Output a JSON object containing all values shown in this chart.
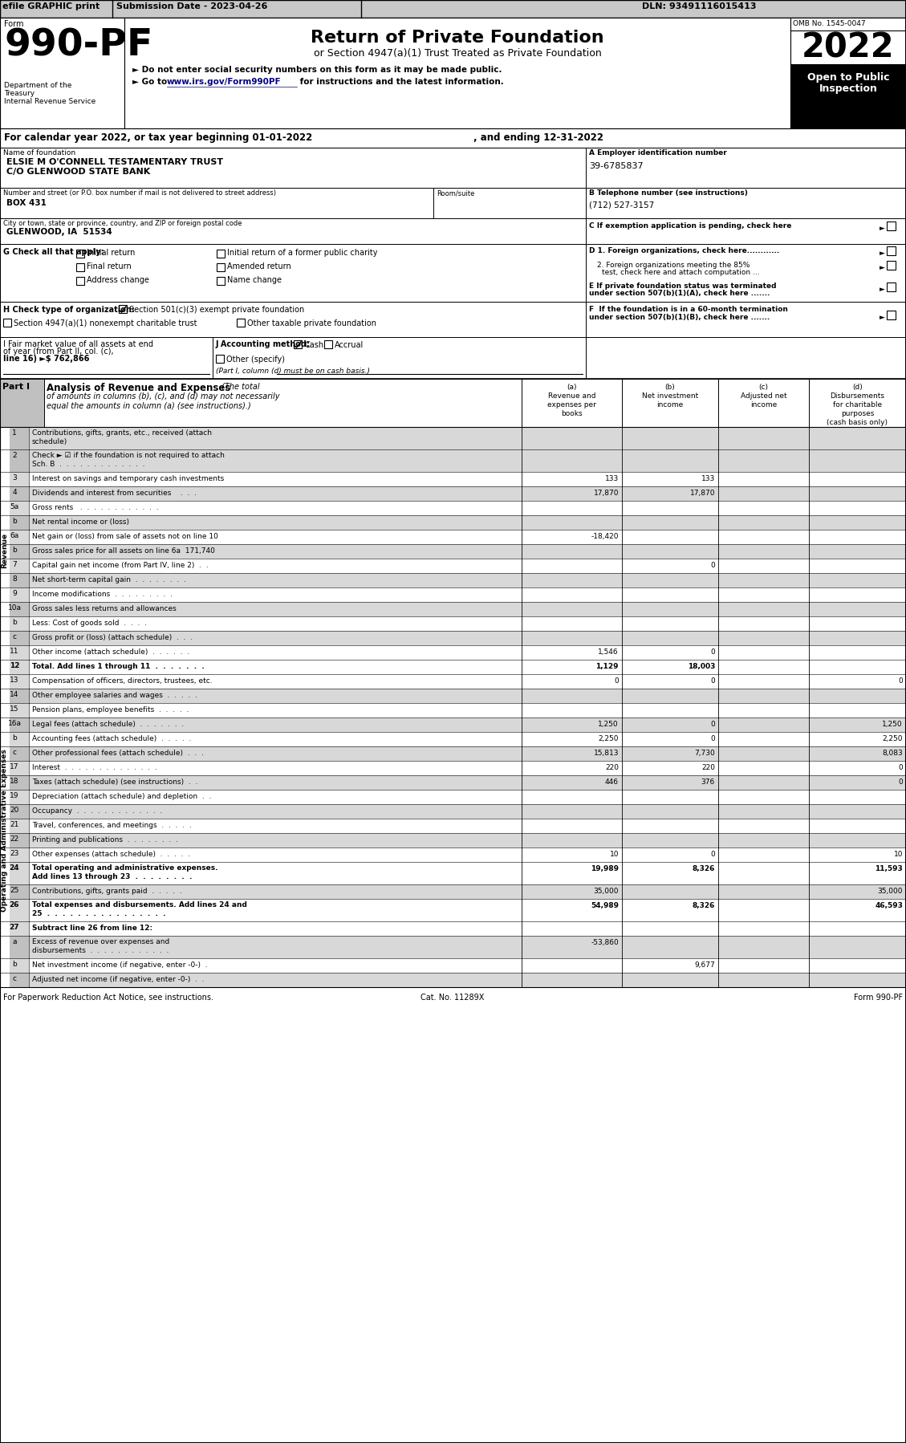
{
  "rows": [
    {
      "num": "1",
      "label": "Contributions, gifts, grants, etc., received (attach\nschedule)",
      "a": "",
      "b": "",
      "c": "",
      "d": "",
      "bold": false,
      "shade": true
    },
    {
      "num": "2",
      "label": "Check ► ☑ if the foundation is not required to attach\nSch. B  .  .  .  .  .  .  .  .  .  .  .  .  .",
      "a": "",
      "b": "",
      "c": "",
      "d": "",
      "bold": false,
      "shade": true
    },
    {
      "num": "3",
      "label": "Interest on savings and temporary cash investments",
      "a": "133",
      "b": "133",
      "c": "",
      "d": "",
      "bold": false,
      "shade": false
    },
    {
      "num": "4",
      "label": "Dividends and interest from securities    .  .  .",
      "a": "17,870",
      "b": "17,870",
      "c": "",
      "d": "",
      "bold": false,
      "shade": true
    },
    {
      "num": "5a",
      "label": "Gross rents   .  .  .  .  .  .  .  .  .  .  .  .",
      "a": "",
      "b": "",
      "c": "",
      "d": "",
      "bold": false,
      "shade": false
    },
    {
      "num": "b",
      "label": "Net rental income or (loss)",
      "a": "",
      "b": "",
      "c": "",
      "d": "",
      "bold": false,
      "shade": true
    },
    {
      "num": "6a",
      "label": "Net gain or (loss) from sale of assets not on line 10",
      "a": "-18,420",
      "b": "",
      "c": "",
      "d": "",
      "bold": false,
      "shade": false
    },
    {
      "num": "b",
      "label": "Gross sales price for all assets on line 6a  171,740",
      "a": "",
      "b": "",
      "c": "",
      "d": "",
      "bold": false,
      "shade": true
    },
    {
      "num": "7",
      "label": "Capital gain net income (from Part IV, line 2)  .  .",
      "a": "",
      "b": "0",
      "c": "",
      "d": "",
      "bold": false,
      "shade": false
    },
    {
      "num": "8",
      "label": "Net short-term capital gain  .  .  .  .  .  .  .  .",
      "a": "",
      "b": "",
      "c": "",
      "d": "",
      "bold": false,
      "shade": true
    },
    {
      "num": "9",
      "label": "Income modifications  .  .  .  .  .  .  .  .  .",
      "a": "",
      "b": "",
      "c": "",
      "d": "",
      "bold": false,
      "shade": false
    },
    {
      "num": "10a",
      "label": "Gross sales less returns and allowances",
      "a": "",
      "b": "",
      "c": "",
      "d": "",
      "bold": false,
      "shade": true
    },
    {
      "num": "b",
      "label": "Less: Cost of goods sold  .  .  .  .",
      "a": "",
      "b": "",
      "c": "",
      "d": "",
      "bold": false,
      "shade": false
    },
    {
      "num": "c",
      "label": "Gross profit or (loss) (attach schedule)  .  .  .",
      "a": "",
      "b": "",
      "c": "",
      "d": "",
      "bold": false,
      "shade": true
    },
    {
      "num": "11",
      "label": "Other income (attach schedule)  .  .  .  .  .  .",
      "a": "1,546",
      "b": "0",
      "c": "",
      "d": "",
      "bold": false,
      "shade": false
    },
    {
      "num": "12",
      "label": "Total. Add lines 1 through 11  .  .  .  .  .  .  .",
      "a": "1,129",
      "b": "18,003",
      "c": "",
      "d": "",
      "bold": true,
      "shade": false
    },
    {
      "num": "13",
      "label": "Compensation of officers, directors, trustees, etc.",
      "a": "0",
      "b": "0",
      "c": "",
      "d": "0",
      "bold": false,
      "shade": false
    },
    {
      "num": "14",
      "label": "Other employee salaries and wages  .  .  .  .  .",
      "a": "",
      "b": "",
      "c": "",
      "d": "",
      "bold": false,
      "shade": true
    },
    {
      "num": "15",
      "label": "Pension plans, employee benefits  .  .  .  .  .",
      "a": "",
      "b": "",
      "c": "",
      "d": "",
      "bold": false,
      "shade": false
    },
    {
      "num": "16a",
      "label": "Legal fees (attach schedule)  .  .  .  .  .  .  .",
      "a": "1,250",
      "b": "0",
      "c": "",
      "d": "1,250",
      "bold": false,
      "shade": true
    },
    {
      "num": "b",
      "label": "Accounting fees (attach schedule)  .  .  .  .  .",
      "a": "2,250",
      "b": "0",
      "c": "",
      "d": "2,250",
      "bold": false,
      "shade": false
    },
    {
      "num": "c",
      "label": "Other professional fees (attach schedule)  .  .  .",
      "a": "15,813",
      "b": "7,730",
      "c": "",
      "d": "8,083",
      "bold": false,
      "shade": true
    },
    {
      "num": "17",
      "label": "Interest  .  .  .  .  .  .  .  .  .  .  .  .  .  .",
      "a": "220",
      "b": "220",
      "c": "",
      "d": "0",
      "bold": false,
      "shade": false
    },
    {
      "num": "18",
      "label": "Taxes (attach schedule) (see instructions)  .  .",
      "a": "446",
      "b": "376",
      "c": "",
      "d": "0",
      "bold": false,
      "shade": true
    },
    {
      "num": "19",
      "label": "Depreciation (attach schedule) and depletion  .  .",
      "a": "",
      "b": "",
      "c": "",
      "d": "",
      "bold": false,
      "shade": false
    },
    {
      "num": "20",
      "label": "Occupancy  .  .  .  .  .  .  .  .  .  .  .  .  .",
      "a": "",
      "b": "",
      "c": "",
      "d": "",
      "bold": false,
      "shade": true
    },
    {
      "num": "21",
      "label": "Travel, conferences, and meetings  .  .  .  .  .",
      "a": "",
      "b": "",
      "c": "",
      "d": "",
      "bold": false,
      "shade": false
    },
    {
      "num": "22",
      "label": "Printing and publications  .  .  .  .  .  .  .  .",
      "a": "",
      "b": "",
      "c": "",
      "d": "",
      "bold": false,
      "shade": true
    },
    {
      "num": "23",
      "label": "Other expenses (attach schedule)  .  .  .  .  .",
      "a": "10",
      "b": "0",
      "c": "",
      "d": "10",
      "bold": false,
      "shade": false
    },
    {
      "num": "24",
      "label": "Total operating and administrative expenses.\nAdd lines 13 through 23  .  .  .  .  .  .  .  .",
      "a": "19,989",
      "b": "8,326",
      "c": "",
      "d": "11,593",
      "bold": true,
      "shade": false
    },
    {
      "num": "25",
      "label": "Contributions, gifts, grants paid  .  .  .  .  .",
      "a": "35,000",
      "b": "",
      "c": "",
      "d": "35,000",
      "bold": false,
      "shade": true
    },
    {
      "num": "26",
      "label": "Total expenses and disbursements. Add lines 24 and\n25  .  .  .  .  .  .  .  .  .  .  .  .  .  .  .  .",
      "a": "54,989",
      "b": "8,326",
      "c": "",
      "d": "46,593",
      "bold": true,
      "shade": false
    },
    {
      "num": "27",
      "label": "Subtract line 26 from line 12:",
      "a": "",
      "b": "",
      "c": "",
      "d": "",
      "bold": true,
      "shade": false
    },
    {
      "num": "a",
      "label": "Excess of revenue over expenses and\ndisbursements  .  .  .  .  .  .  .  .  .  .  .  .",
      "a": "-53,860",
      "b": "",
      "c": "",
      "d": "",
      "bold": false,
      "shade": true
    },
    {
      "num": "b",
      "label": "Net investment income (if negative, enter -0-)  .",
      "a": "",
      "b": "9,677",
      "c": "",
      "d": "",
      "bold": false,
      "shade": false
    },
    {
      "num": "c",
      "label": "Adjusted net income (if negative, enter -0-)  .  .",
      "a": "",
      "b": "",
      "c": "",
      "d": "",
      "bold": false,
      "shade": true
    }
  ]
}
